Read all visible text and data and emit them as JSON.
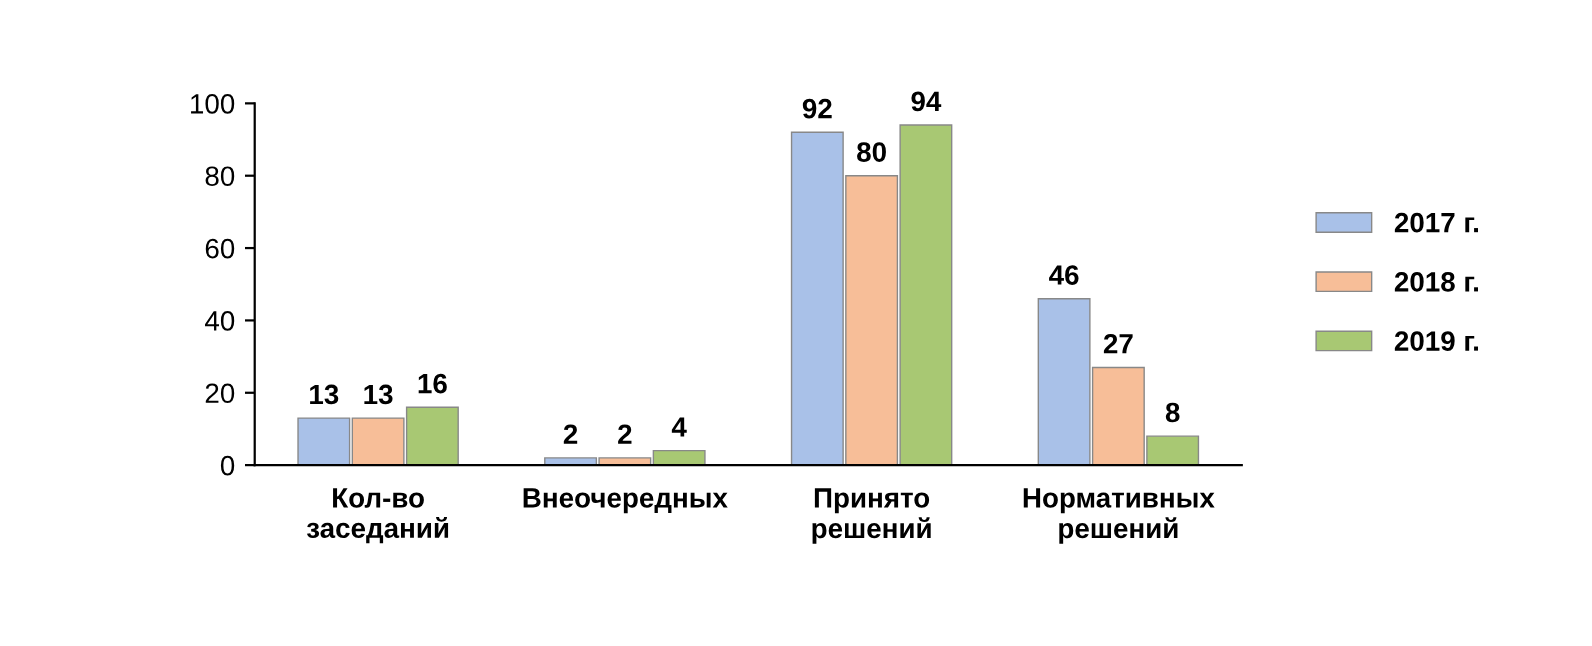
{
  "chart_data": {
    "type": "bar",
    "categories": [
      "Кол-во\nзаседаний",
      "Внеочередных",
      "Принято\nрешений",
      "Нормативных\nрешений"
    ],
    "series": [
      {
        "name": "2017 г.",
        "color": "#a9c1e8",
        "values": [
          13,
          2,
          92,
          46
        ]
      },
      {
        "name": "2018 г.",
        "color": "#f7be98",
        "values": [
          13,
          2,
          80,
          27
        ]
      },
      {
        "name": "2019 г.",
        "color": "#a8c873",
        "values": [
          16,
          4,
          94,
          8
        ]
      }
    ],
    "ylim": [
      0,
      100
    ],
    "yticks": [
      0,
      20,
      40,
      60,
      80,
      100
    ],
    "grid": false,
    "legend": "right",
    "data_labels": true
  }
}
